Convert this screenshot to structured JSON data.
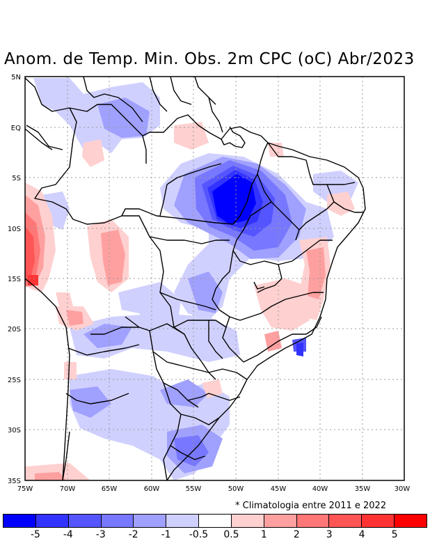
{
  "title": "Anom. de Temp. Min. Obs. 2m CPC (oC) Abr/2023",
  "footnote": "* Climatologia entre 2011 e 2022",
  "lat_labels": [
    "5N",
    "EQ",
    "5S",
    "10S",
    "15S",
    "20S",
    "25S",
    "30S",
    "35S"
  ],
  "lon_labels": [
    "75W",
    "70W",
    "65W",
    "60W",
    "55W",
    "50W",
    "45W",
    "40W",
    "35W",
    "30W"
  ],
  "colorbar": {
    "colors": [
      "#0000ff",
      "#3333ff",
      "#5555ff",
      "#7777ff",
      "#a0a0ff",
      "#d0d0ff",
      "#ffffff",
      "#ffd0d0",
      "#ffa0a0",
      "#ff7777",
      "#ff5555",
      "#ff3333",
      "#ff0000"
    ],
    "labels": [
      "-5",
      "-4",
      "-3",
      "-2",
      "-1",
      "-0.5",
      "0.5",
      "1",
      "2",
      "3",
      "4",
      "5"
    ]
  }
}
